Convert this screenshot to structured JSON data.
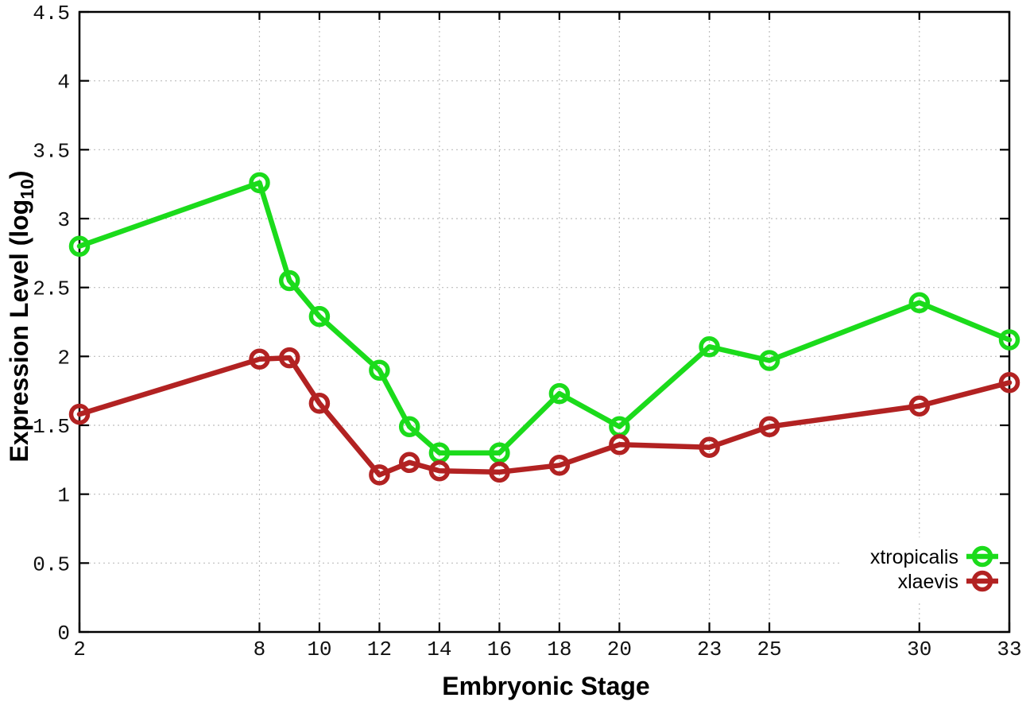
{
  "chart_data": {
    "type": "line",
    "xlabel": "Embryonic Stage",
    "ylabel_prefix": "Expression Level (log",
    "ylabel_sub": "10",
    "ylabel_suffix": ")",
    "x": [
      2,
      8,
      9,
      10,
      12,
      13,
      14,
      16,
      18,
      20,
      23,
      25,
      30,
      33
    ],
    "series": [
      {
        "name": "xtropicalis",
        "color": "#1bdb1b",
        "values": [
          2.8,
          3.26,
          2.55,
          2.29,
          1.9,
          1.49,
          1.3,
          1.3,
          1.73,
          1.49,
          2.07,
          1.97,
          2.39,
          2.12
        ]
      },
      {
        "name": "xlaevis",
        "color": "#b22222",
        "values": [
          1.58,
          1.98,
          1.99,
          1.66,
          1.14,
          1.23,
          1.17,
          1.16,
          1.21,
          1.36,
          1.34,
          1.49,
          1.64,
          1.81
        ]
      }
    ],
    "xticks": [
      2,
      8,
      10,
      12,
      14,
      16,
      18,
      20,
      23,
      25,
      30,
      33
    ],
    "yticks": [
      "0",
      "0.5",
      "1",
      "1.5",
      "2",
      "2.5",
      "3",
      "3.5",
      "4",
      "4.5"
    ],
    "xlim": [
      2,
      33
    ],
    "ylim": [
      0,
      4.5
    ],
    "grid": true,
    "legend_position": "bottom-right"
  },
  "colors": {
    "background": "#ffffff",
    "axis": "#000000",
    "grid": "#bdbdbd",
    "xtropicalis": "#1bdb1b",
    "xlaevis": "#b22222"
  }
}
